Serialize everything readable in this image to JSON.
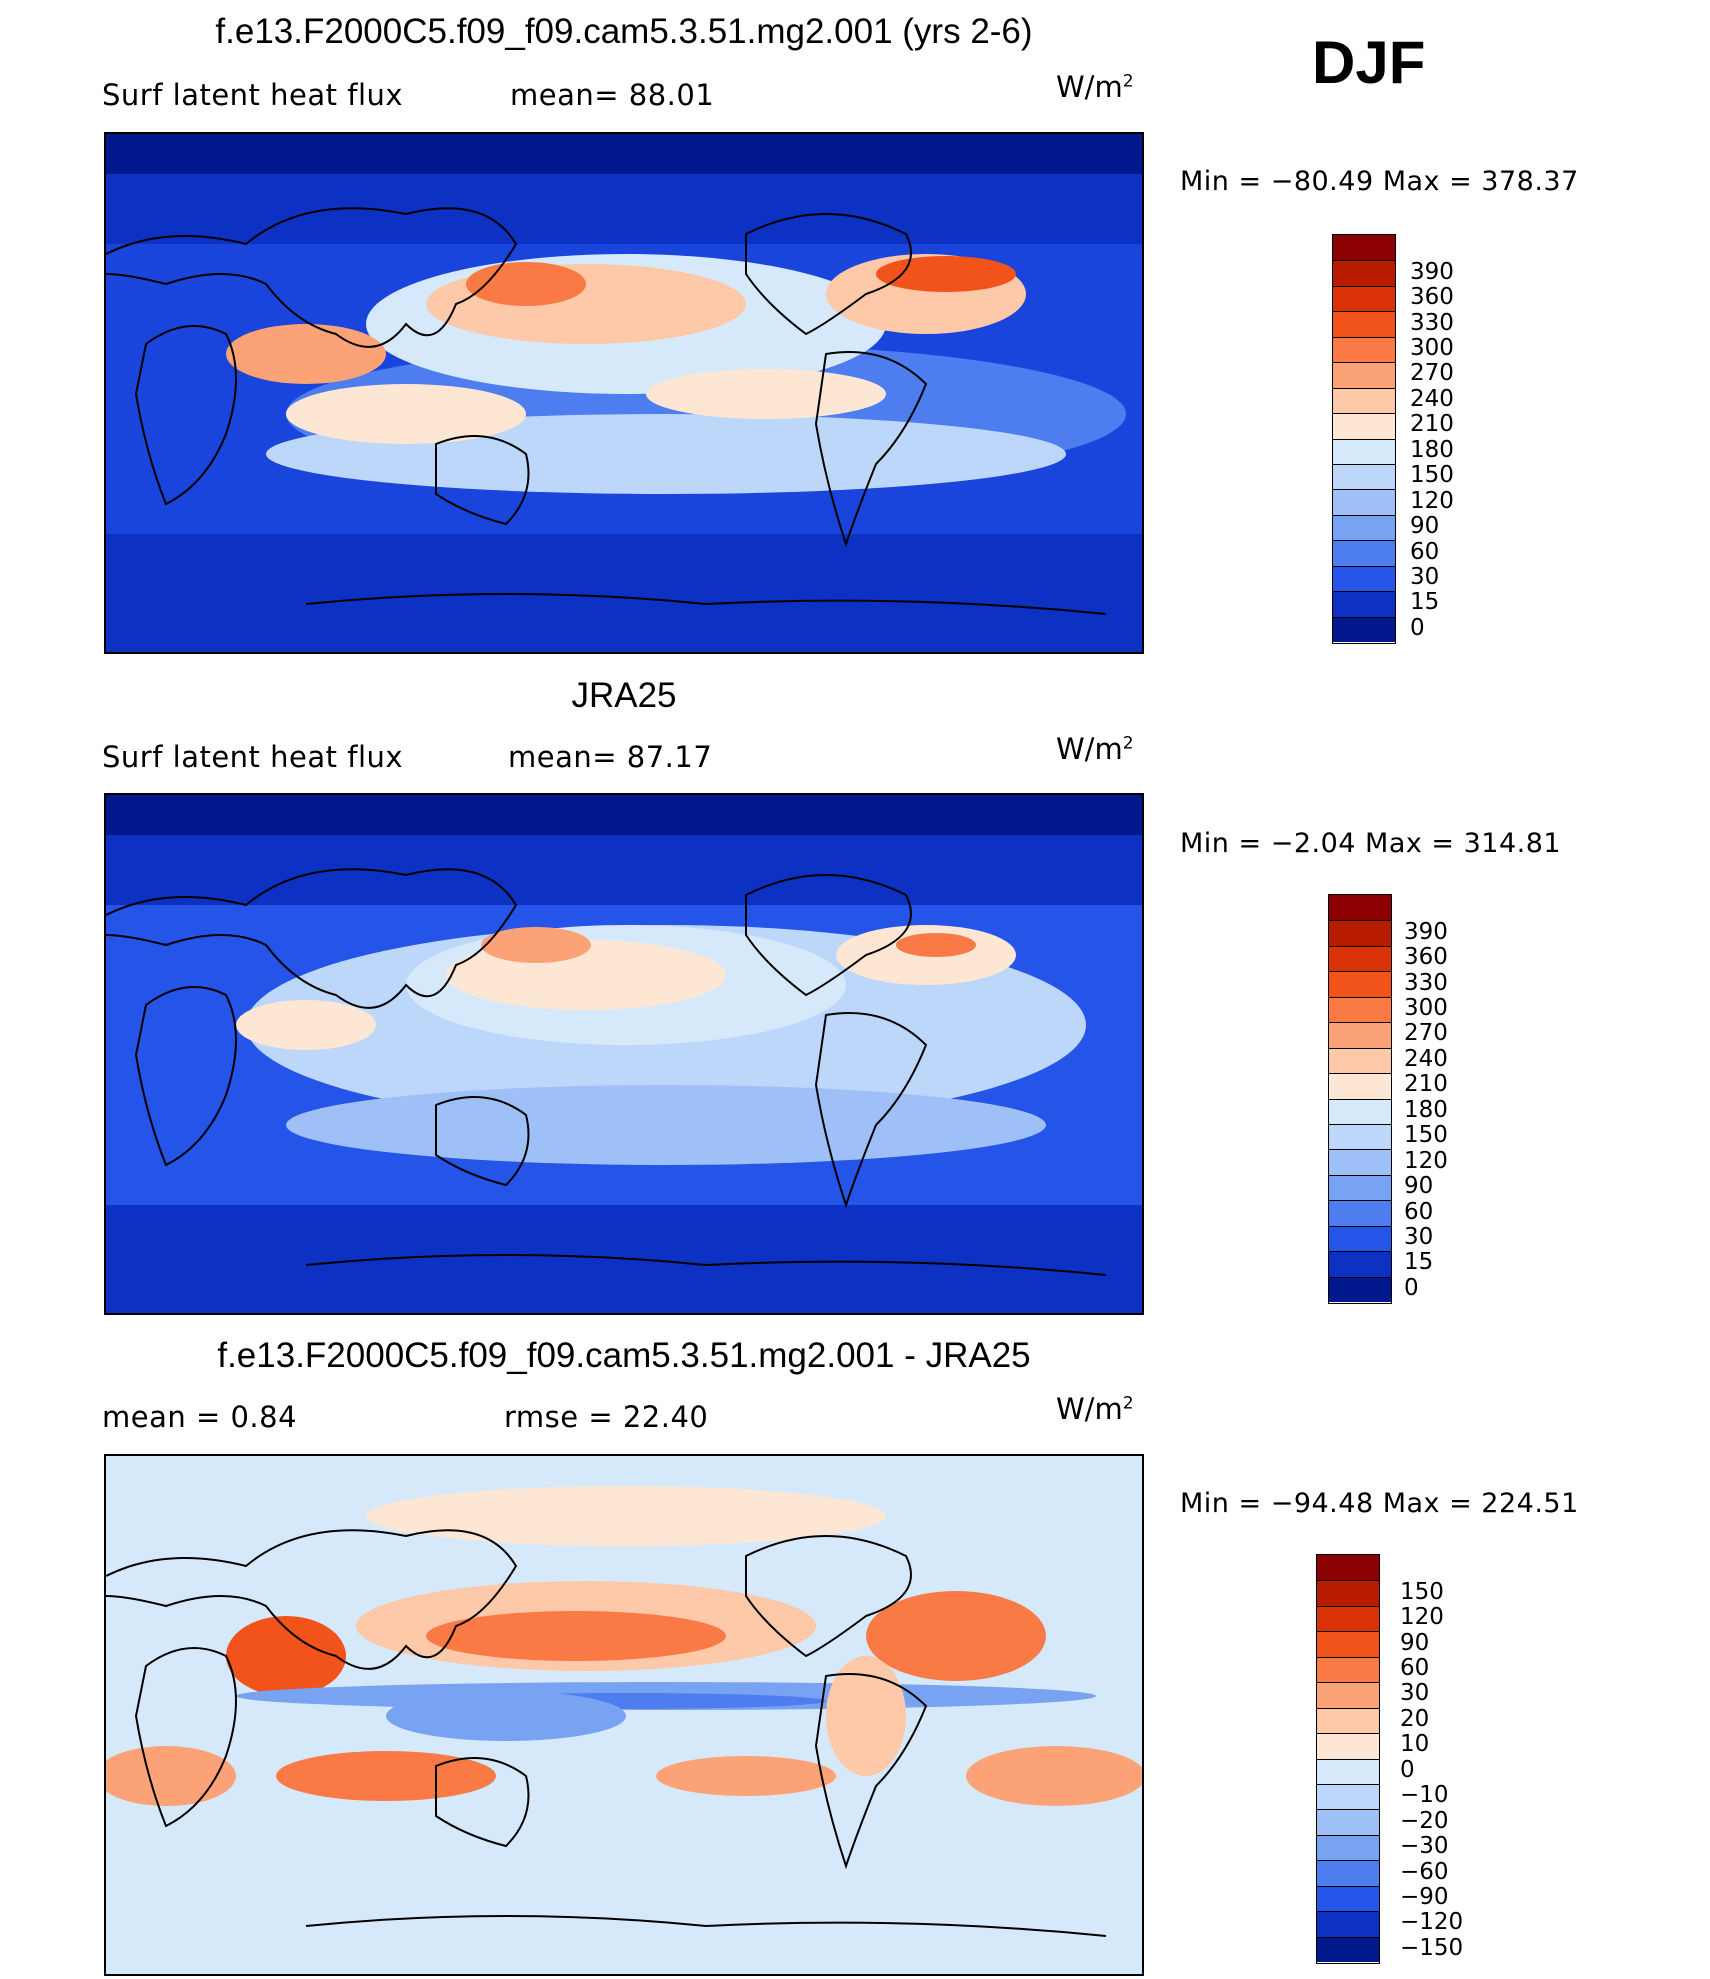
{
  "season": "DJF",
  "panels": [
    {
      "id": "model",
      "title": "f.e13.F2000C5.f09_f09.cam5.3.51.mg2.001 (yrs 2-6)",
      "left_label": "Surf latent heat flux",
      "center_label": "mean=  88.01",
      "units_base": "W/m",
      "units_exp": "2",
      "minmax": "Min  =  −80.49  Max  =  378.37",
      "colorbar": {
        "labels": [
          "390",
          "360",
          "330",
          "300",
          "270",
          "240",
          "210",
          "180",
          "150",
          "120",
          "90",
          "60",
          "30",
          "15",
          "0"
        ],
        "colors": [
          "#8b0000",
          "#b71c00",
          "#db3208",
          "#f2531a",
          "#f97a44",
          "#fba377",
          "#fdc9a8",
          "#fde7d4",
          "#d6e9fb",
          "#bdd7fa",
          "#9ec0f7",
          "#78a3f2",
          "#4e7df0",
          "#2454e8",
          "#0d31c2",
          "#00188c"
        ]
      }
    },
    {
      "id": "obs",
      "title": "JRA25",
      "left_label": "Surf latent heat flux",
      "center_label": "mean=  87.17",
      "units_base": "W/m",
      "units_exp": "2",
      "minmax": "Min  =   −2.04  Max  =  314.81",
      "colorbar": {
        "labels": [
          "390",
          "360",
          "330",
          "300",
          "270",
          "240",
          "210",
          "180",
          "150",
          "120",
          "90",
          "60",
          "30",
          "15",
          "0"
        ],
        "colors": [
          "#8b0000",
          "#b71c00",
          "#db3208",
          "#f2531a",
          "#f97a44",
          "#fba377",
          "#fdc9a8",
          "#fde7d4",
          "#d6e9fb",
          "#bdd7fa",
          "#9ec0f7",
          "#78a3f2",
          "#4e7df0",
          "#2454e8",
          "#0d31c2",
          "#00188c"
        ]
      }
    },
    {
      "id": "diff",
      "title": "f.e13.F2000C5.f09_f09.cam5.3.51.mg2.001 - JRA25",
      "left_label": "mean  =     0.84",
      "center_label": "rmse  =    22.40",
      "units_base": "W/m",
      "units_exp": "2",
      "minmax": "Min  =  −94.48  Max  =  224.51",
      "colorbar": {
        "labels": [
          "150",
          "120",
          "90",
          "60",
          "30",
          "20",
          "10",
          "0",
          "−10",
          "−20",
          "−30",
          "−60",
          "−90",
          "−120",
          "−150"
        ],
        "colors": [
          "#8b0000",
          "#b71c00",
          "#db3208",
          "#f2531a",
          "#f97a44",
          "#fba377",
          "#fdc9a8",
          "#fde7d4",
          "#d6e9fb",
          "#bdd7fa",
          "#9ec0f7",
          "#78a3f2",
          "#4e7df0",
          "#2454e8",
          "#0d31c2",
          "#00188c"
        ]
      }
    }
  ]
}
